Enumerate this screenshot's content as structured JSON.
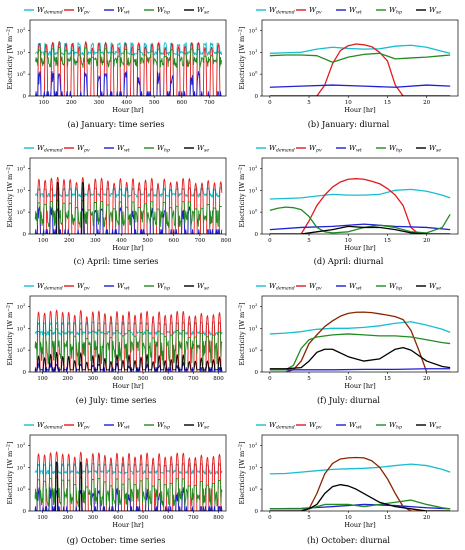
{
  "figure": {
    "captions": [
      "(a) January: time series",
      "(b) January: diurnal",
      "(c) April: time series",
      "(d) April: diurnal",
      "(e) July: time series",
      "(f) July: diurnal",
      "(g) October: time series",
      "(h) October: diurnal"
    ]
  },
  "legend": {
    "entries": [
      {
        "base": "W",
        "sub": "demand",
        "color": "#17becf"
      },
      {
        "base": "W",
        "sub": "pv",
        "color": "#e41a1c"
      },
      {
        "base": "W",
        "sub": "wt",
        "color": "#1f1fd4"
      },
      {
        "base": "W",
        "sub": "hp",
        "color": "#228b22"
      },
      {
        "base": "W",
        "sub": "se",
        "color": "#000000"
      }
    ]
  },
  "axes": {
    "ylabel": "Electricity [W m^-2]",
    "ylabel_text": "Electricity [W m",
    "ylabel_sup": "−2",
    "ylabel_close": "]",
    "xlabel": "Hour [hr]",
    "ytick_labels": [
      {
        "base": "10",
        "exp": "2"
      },
      {
        "base": "10",
        "exp": "1"
      },
      {
        "base": "10",
        "exp": "0"
      }
    ],
    "ytick_zero": "0"
  },
  "chart_data": [
    {
      "type": "line",
      "panel": "(a) January: time series",
      "title": "",
      "xlabel": "Hour [hr]",
      "ylabel": "Electricity [W m-2]",
      "yscale": "symlog",
      "ylim": [
        0,
        300
      ],
      "xlim": [
        50,
        760
      ],
      "xticks": [
        100,
        200,
        300,
        400,
        500,
        600,
        700
      ],
      "series": [
        {
          "name": "W_demand",
          "color": "#17becf",
          "pattern": "daily",
          "day_value": 25,
          "night_value": 9
        },
        {
          "name": "W_pv",
          "color": "#e41a1c",
          "pattern": "daily",
          "day_value": 28,
          "night_value": 0
        },
        {
          "name": "W_wt",
          "color": "#1f1fd4",
          "pattern": "intermittent",
          "day_value": 0.9,
          "night_value": 0
        },
        {
          "name": "W_hp",
          "color": "#228b22",
          "pattern": "daily",
          "day_value": 14,
          "night_value": 2
        },
        {
          "name": "W_se",
          "color": "#000000",
          "pattern": "flat",
          "day_value": 0,
          "night_value": 0
        }
      ]
    },
    {
      "type": "line",
      "panel": "(b) January: diurnal",
      "title": "",
      "xlabel": "Hour [hr]",
      "ylabel": "Electricity [W m-2]",
      "yscale": "symlog",
      "ylim": [
        0,
        300
      ],
      "xlim": [
        -1,
        24
      ],
      "xticks": [
        0,
        5,
        10,
        15,
        20
      ],
      "series": [
        {
          "name": "W_demand",
          "color": "#17becf",
          "x": [
            0,
            2,
            4,
            6,
            8,
            10,
            12,
            14,
            16,
            18,
            20,
            22,
            23
          ],
          "y": [
            9,
            9.5,
            10,
            14,
            17,
            15,
            14,
            14.5,
            19,
            21,
            17,
            11,
            9
          ]
        },
        {
          "name": "W_pv",
          "color": "#e41a1c",
          "x": [
            0,
            5,
            6,
            7,
            8,
            9,
            10,
            11,
            12,
            13,
            14,
            15,
            16,
            17,
            18,
            23
          ],
          "y": [
            0,
            0,
            0,
            0.5,
            3,
            12,
            20,
            24,
            22,
            18,
            10,
            4,
            0.5,
            0,
            0,
            0
          ]
        },
        {
          "name": "W_wt",
          "color": "#1f1fd4",
          "x": [
            0,
            4,
            8,
            12,
            16,
            20,
            23
          ],
          "y": [
            0.4,
            0.45,
            0.5,
            0.45,
            0.4,
            0.5,
            0.45
          ]
        },
        {
          "name": "W_hp",
          "color": "#228b22",
          "x": [
            0,
            2,
            4,
            6,
            8,
            10,
            12,
            14,
            16,
            18,
            20,
            22,
            23
          ],
          "y": [
            7,
            7.5,
            7.5,
            7,
            3.5,
            6,
            8,
            9,
            5,
            5.5,
            6,
            7,
            7.5
          ]
        },
        {
          "name": "W_se",
          "color": "#000000",
          "x": [
            0,
            23
          ],
          "y": [
            0,
            0
          ]
        }
      ]
    },
    {
      "type": "line",
      "panel": "(c) April: time series",
      "title": "",
      "xlabel": "Hour [hr]",
      "ylabel": "Electricity [W m-2]",
      "yscale": "symlog",
      "ylim": [
        0,
        300
      ],
      "xlim": [
        50,
        800
      ],
      "xticks": [
        100,
        200,
        300,
        400,
        500,
        600,
        700,
        800
      ],
      "series": [
        {
          "name": "W_demand",
          "color": "#17becf",
          "pattern": "daily",
          "day_value": 12,
          "night_value": 6
        },
        {
          "name": "W_pv",
          "color": "#e41a1c",
          "pattern": "daily",
          "day_value": 35,
          "night_value": 0
        },
        {
          "name": "W_wt",
          "color": "#1f1fd4",
          "pattern": "intermittent",
          "day_value": 1.2,
          "night_value": 0
        },
        {
          "name": "W_hp",
          "color": "#228b22",
          "pattern": "daily",
          "day_value": 3,
          "night_value": 0.3
        },
        {
          "name": "W_se",
          "color": "#000000",
          "pattern": "spikes",
          "day_value": 20,
          "night_value": 0
        }
      ]
    },
    {
      "type": "line",
      "panel": "(d) April: diurnal",
      "title": "",
      "xlabel": "Hour [hr]",
      "ylabel": "Electricity [W m-2]",
      "yscale": "symlog",
      "ylim": [
        0,
        300
      ],
      "xlim": [
        -1,
        24
      ],
      "xticks": [
        0,
        5,
        10,
        15,
        20
      ],
      "series": [
        {
          "name": "W_demand",
          "color": "#17becf",
          "x": [
            0,
            2,
            4,
            6,
            8,
            10,
            12,
            14,
            16,
            18,
            20,
            22,
            23
          ],
          "y": [
            4,
            4.2,
            4.5,
            5.5,
            6.5,
            6,
            6,
            6.5,
            10,
            11,
            9,
            6,
            4.5
          ]
        },
        {
          "name": "W_pv",
          "color": "#e41a1c",
          "x": [
            0,
            3,
            4,
            5,
            6,
            7,
            8,
            9,
            10,
            11,
            12,
            13,
            14,
            15,
            16,
            17,
            18,
            19,
            23
          ],
          "y": [
            0,
            0,
            0,
            0.6,
            2,
            6,
            14,
            24,
            32,
            34,
            32,
            26,
            20,
            12,
            6,
            2,
            0.3,
            0,
            0
          ]
        },
        {
          "name": "W_wt",
          "color": "#1f1fd4",
          "x": [
            0,
            4,
            8,
            12,
            16,
            20,
            23
          ],
          "y": [
            0.2,
            0.3,
            0.35,
            0.45,
            0.35,
            0.3,
            0.2
          ]
        },
        {
          "name": "W_hp",
          "color": "#228b22",
          "x": [
            0,
            1,
            2,
            3,
            4,
            5,
            6,
            7,
            8,
            10,
            12,
            14,
            16,
            18,
            20,
            22,
            23
          ],
          "y": [
            1.2,
            1.5,
            1.7,
            1.6,
            1.3,
            0.8,
            0.3,
            0.1,
            0.05,
            0.1,
            0.3,
            0.4,
            0.3,
            0.1,
            0.05,
            0.3,
            0.9
          ]
        },
        {
          "name": "W_se",
          "color": "#000000",
          "x": [
            0,
            4,
            6,
            8,
            10,
            12,
            14,
            16,
            18,
            20,
            23
          ],
          "y": [
            0,
            0,
            0.1,
            0.2,
            0.35,
            0.3,
            0.3,
            0.2,
            0.05,
            0,
            0
          ]
        }
      ]
    },
    {
      "type": "line",
      "panel": "(e) July: time series",
      "title": "",
      "xlabel": "Hour [hr]",
      "ylabel": "Electricity [W m-2]",
      "yscale": "symlog",
      "ylim": [
        0,
        300
      ],
      "xlim": [
        50,
        830
      ],
      "xticks": [
        100,
        200,
        300,
        400,
        500,
        600,
        700,
        800
      ],
      "series": [
        {
          "name": "W_demand",
          "color": "#17becf",
          "pattern": "daily",
          "day_value": 18,
          "night_value": 6
        },
        {
          "name": "W_pv",
          "color": "#e41a1c",
          "pattern": "daily",
          "day_value": 60,
          "night_value": 0
        },
        {
          "name": "W_wt",
          "color": "#1f1fd4",
          "pattern": "intermittent",
          "day_value": 0.3,
          "night_value": 0
        },
        {
          "name": "W_hp",
          "color": "#228b22",
          "pattern": "daily",
          "day_value": 8,
          "night_value": 0.3
        },
        {
          "name": "W_se",
          "color": "#000000",
          "pattern": "daily",
          "day_value": 0.8,
          "night_value": 0.1
        }
      ]
    },
    {
      "type": "line",
      "panel": "(f) July: diurnal",
      "title": "",
      "xlabel": "Hour [hr]",
      "ylabel": "Electricity [W m-2]",
      "yscale": "symlog",
      "ylim": [
        0,
        300
      ],
      "xlim": [
        -1,
        24
      ],
      "xticks": [
        0,
        5,
        10,
        15,
        20
      ],
      "series": [
        {
          "name": "W_demand",
          "color": "#17becf",
          "x": [
            0,
            2,
            4,
            5,
            6,
            8,
            10,
            12,
            14,
            16,
            18,
            20,
            22,
            23
          ],
          "y": [
            5.5,
            6,
            7,
            8,
            9,
            10,
            10,
            11,
            13,
            17,
            20,
            14,
            9,
            6.5
          ]
        },
        {
          "name": "W_pv",
          "color": "#8b2500",
          "x": [
            0,
            2,
            3,
            4,
            5,
            6,
            7,
            8,
            9,
            10,
            11,
            12,
            13,
            14,
            15,
            16,
            17,
            18,
            19,
            20,
            23
          ],
          "y": [
            0,
            0,
            0.1,
            0.5,
            2,
            5,
            12,
            22,
            36,
            48,
            54,
            55,
            52,
            46,
            40,
            34,
            25,
            8,
            1,
            0,
            0
          ]
        },
        {
          "name": "W_wt",
          "color": "#1f1fd4",
          "x": [
            0,
            4,
            8,
            12,
            16,
            20,
            23
          ],
          "y": [
            0.1,
            0.1,
            0.1,
            0.12,
            0.12,
            0.15,
            0.15
          ]
        },
        {
          "name": "W_hp",
          "color": "#228b22",
          "x": [
            0,
            2,
            3,
            4,
            5,
            6,
            8,
            10,
            12,
            14,
            16,
            18,
            20,
            22,
            23
          ],
          "y": [
            0.1,
            0.1,
            0.3,
            1.2,
            3,
            4,
            5,
            5.5,
            5,
            4.5,
            4.5,
            4,
            3,
            2.2,
            2
          ]
        },
        {
          "name": "W_se",
          "color": "#000000",
          "x": [
            0,
            2,
            4,
            5,
            6,
            7,
            8,
            10,
            12,
            14,
            16,
            17,
            18,
            20,
            22,
            23
          ],
          "y": [
            0.15,
            0.15,
            0.2,
            0.5,
            0.9,
            1.1,
            1.1,
            0.7,
            0.5,
            0.6,
            1.1,
            1.3,
            1.0,
            0.5,
            0.25,
            0.2
          ]
        }
      ]
    },
    {
      "type": "line",
      "panel": "(g) October: time series",
      "title": "",
      "xlabel": "Hour [hr]",
      "ylabel": "Electricity [W m-2]",
      "yscale": "symlog",
      "ylim": [
        0,
        300
      ],
      "xlim": [
        50,
        830
      ],
      "xticks": [
        100,
        200,
        300,
        400,
        500,
        600,
        700,
        800
      ],
      "series": [
        {
          "name": "W_demand",
          "color": "#17becf",
          "pattern": "daily",
          "day_value": 14,
          "night_value": 6
        },
        {
          "name": "W_pv",
          "color": "#e41a1c",
          "pattern": "daily",
          "day_value": 45,
          "night_value": 0
        },
        {
          "name": "W_wt",
          "color": "#1f1fd4",
          "pattern": "intermittent",
          "day_value": 0.8,
          "night_value": 0
        },
        {
          "name": "W_hp",
          "color": "#228b22",
          "pattern": "daily",
          "day_value": 3,
          "night_value": 0.2
        },
        {
          "name": "W_se",
          "color": "#000000",
          "pattern": "spikes",
          "day_value": 15,
          "night_value": 0
        }
      ]
    },
    {
      "type": "line",
      "panel": "(h) October: diurnal",
      "title": "",
      "xlabel": "Hour [hr]",
      "ylabel": "Electricity [W m-2]",
      "yscale": "symlog",
      "ylim": [
        0,
        300
      ],
      "xlim": [
        -1,
        24
      ],
      "xticks": [
        0,
        5,
        10,
        15,
        20
      ],
      "series": [
        {
          "name": "W_demand",
          "color": "#17becf",
          "x": [
            0,
            2,
            4,
            6,
            8,
            10,
            12,
            14,
            16,
            18,
            20,
            22,
            23
          ],
          "y": [
            5,
            5.2,
            6,
            7,
            8,
            8.5,
            9,
            10,
            12,
            14,
            12,
            8,
            6
          ]
        },
        {
          "name": "W_pv",
          "color": "#8b2500",
          "x": [
            0,
            3,
            4,
            5,
            6,
            7,
            8,
            9,
            10,
            11,
            12,
            13,
            14,
            15,
            16,
            17,
            18,
            19,
            23
          ],
          "y": [
            0,
            0,
            0,
            0.1,
            0.8,
            5,
            15,
            24,
            27,
            28,
            27,
            20,
            10,
            3,
            0.8,
            0.2,
            0,
            0,
            0
          ]
        },
        {
          "name": "W_wt",
          "color": "#1f1fd4",
          "x": [
            0,
            4,
            8,
            12,
            16,
            20,
            23
          ],
          "y": [
            0.1,
            0.12,
            0.2,
            0.3,
            0.25,
            0.15,
            0.1
          ]
        },
        {
          "name": "W_hp",
          "color": "#228b22",
          "x": [
            0,
            2,
            4,
            5,
            6,
            7,
            8,
            10,
            12,
            14,
            16,
            18,
            20,
            22,
            23
          ],
          "y": [
            0.1,
            0.1,
            0.1,
            0.1,
            0.2,
            0.3,
            0.3,
            0.3,
            0.2,
            0.3,
            0.4,
            0.5,
            0.3,
            0.15,
            0.1
          ]
        },
        {
          "name": "W_se",
          "color": "#000000",
          "x": [
            0,
            4,
            5,
            6,
            7,
            8,
            9,
            10,
            11,
            12,
            13,
            14,
            16,
            18,
            20,
            23
          ],
          "y": [
            0,
            0,
            0.1,
            0.3,
            0.8,
            1.3,
            1.6,
            1.4,
            1.0,
            0.8,
            0.6,
            0.4,
            0.2,
            0.1,
            0,
            0
          ]
        }
      ]
    }
  ]
}
